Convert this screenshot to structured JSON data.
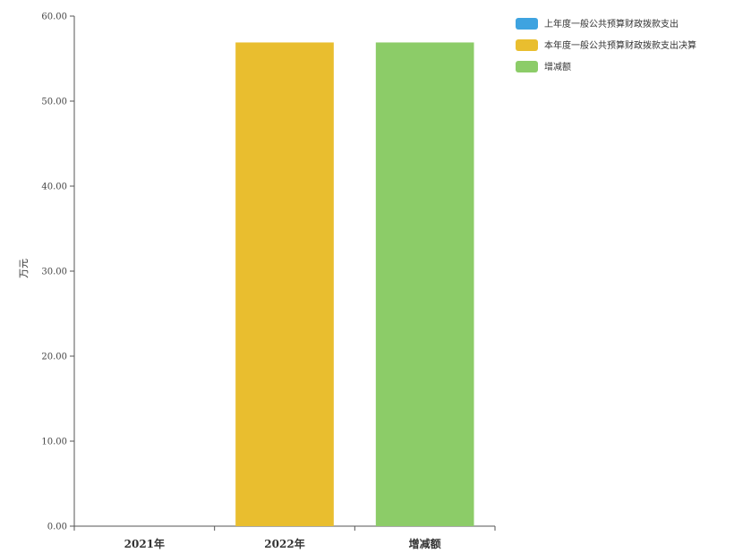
{
  "chart_data": {
    "type": "bar",
    "categories": [
      "2021年",
      "2022年",
      "增减额"
    ],
    "series": [
      {
        "name": "上年度一般公共预算财政拨款支出",
        "color": "#3ea3e0",
        "values": [
          0,
          null,
          null
        ]
      },
      {
        "name": "本年度一般公共预算财政拨款支出决算",
        "color": "#e9be2f",
        "values": [
          null,
          56.9,
          null
        ]
      },
      {
        "name": "增减额",
        "color": "#8ccc68",
        "values": [
          null,
          null,
          56.9
        ]
      }
    ],
    "title": "",
    "xlabel": "",
    "ylabel": "万元",
    "ylim": [
      0,
      60
    ],
    "yticks": [
      "0.00",
      "10.00",
      "20.00",
      "30.00",
      "40.00",
      "50.00",
      "60.00"
    ],
    "grid": false,
    "legend": "top-right"
  }
}
